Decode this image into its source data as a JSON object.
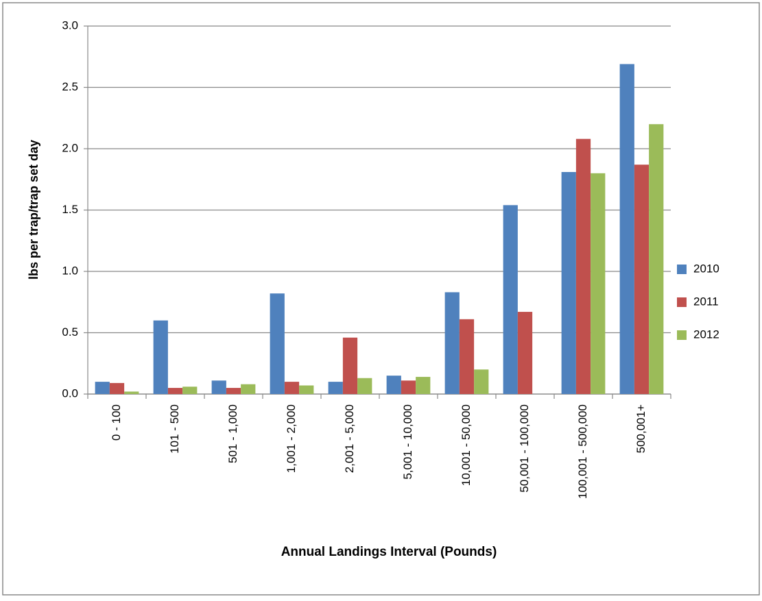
{
  "chart_data": {
    "type": "bar",
    "x_label": "Annual Landings Interval (Pounds)",
    "y_label": "lbs per trap/trap set day",
    "categories": [
      "0 - 100",
      "101 - 500",
      "501 - 1,000",
      "1,001 - 2,000",
      "2,001 - 5,000",
      "5,001 - 10,000",
      "10,001 - 50,000",
      "50,001 - 100,000",
      "100,001 - 500,000",
      "500,001+"
    ],
    "series": [
      {
        "name": "2010",
        "color": "#4f81bd",
        "values": [
          0.1,
          0.6,
          0.11,
          0.82,
          0.1,
          0.15,
          0.83,
          1.54,
          1.81,
          2.69
        ]
      },
      {
        "name": "2011",
        "color": "#c0504d",
        "values": [
          0.09,
          0.05,
          0.05,
          0.1,
          0.46,
          0.11,
          0.61,
          0.67,
          2.08,
          1.87
        ]
      },
      {
        "name": "2012",
        "color": "#9bbb59",
        "values": [
          0.02,
          0.06,
          0.08,
          0.07,
          0.13,
          0.14,
          0.2,
          null,
          1.8,
          2.2
        ]
      }
    ],
    "ylim": [
      0,
      3
    ],
    "yticks": [
      {
        "value": 0,
        "label": "0.0"
      },
      0.5,
      {
        "value": 1,
        "label": "1.0"
      },
      1.5,
      {
        "value": 2,
        "label": "2.0"
      },
      2.5,
      {
        "value": 3,
        "label": "3.0"
      }
    ],
    "grid": true,
    "legend": "right"
  }
}
